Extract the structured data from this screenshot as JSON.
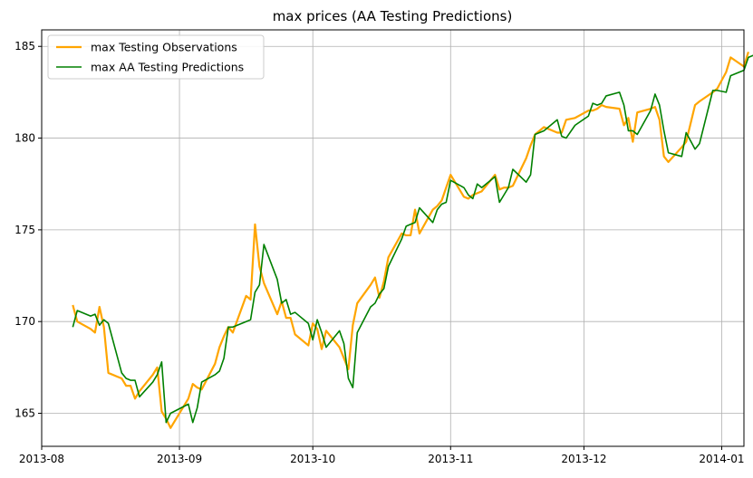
{
  "chart_data": {
    "type": "line",
    "title": "max prices (AA Testing Predictions)",
    "xlabel": "",
    "ylabel": "",
    "x_axis_type": "date",
    "xlim": [
      "2013-08-01",
      "2014-01-06"
    ],
    "ylim": [
      163.2,
      185.9
    ],
    "x_ticks": [
      "2013-08",
      "2013-09",
      "2013-10",
      "2013-11",
      "2013-12",
      "2014-01"
    ],
    "y_ticks": [
      165,
      170,
      175,
      180,
      185
    ],
    "grid": true,
    "legend_position": "upper-left",
    "series": [
      {
        "name": "max Testing Observations",
        "color": "#FFA500",
        "points": [
          [
            "2013-08-08",
            170.9
          ],
          [
            "2013-08-09",
            170.0
          ],
          [
            "2013-08-12",
            169.6
          ],
          [
            "2013-08-13",
            169.4
          ],
          [
            "2013-08-14",
            170.8
          ],
          [
            "2013-08-15",
            169.7
          ],
          [
            "2013-08-16",
            167.2
          ],
          [
            "2013-08-19",
            166.9
          ],
          [
            "2013-08-20",
            166.5
          ],
          [
            "2013-08-21",
            166.5
          ],
          [
            "2013-08-22",
            165.8
          ],
          [
            "2013-08-23",
            166.2
          ],
          [
            "2013-08-26",
            167.1
          ],
          [
            "2013-08-27",
            167.5
          ],
          [
            "2013-08-28",
            165.1
          ],
          [
            "2013-08-29",
            164.7
          ],
          [
            "2013-08-30",
            164.2
          ],
          [
            "2013-09-03",
            165.8
          ],
          [
            "2013-09-04",
            166.6
          ],
          [
            "2013-09-05",
            166.4
          ],
          [
            "2013-09-06",
            166.3
          ],
          [
            "2013-09-09",
            167.7
          ],
          [
            "2013-09-10",
            168.6
          ],
          [
            "2013-09-11",
            169.2
          ],
          [
            "2013-09-12",
            169.7
          ],
          [
            "2013-09-13",
            169.4
          ],
          [
            "2013-09-16",
            171.4
          ],
          [
            "2013-09-17",
            171.2
          ],
          [
            "2013-09-18",
            175.3
          ],
          [
            "2013-09-19",
            173.0
          ],
          [
            "2013-09-20",
            172.1
          ],
          [
            "2013-09-23",
            170.4
          ],
          [
            "2013-09-24",
            171.1
          ],
          [
            "2013-09-25",
            170.2
          ],
          [
            "2013-09-26",
            170.2
          ],
          [
            "2013-09-27",
            169.3
          ],
          [
            "2013-09-30",
            168.7
          ],
          [
            "2013-10-01",
            169.9
          ],
          [
            "2013-10-02",
            169.6
          ],
          [
            "2013-10-03",
            168.5
          ],
          [
            "2013-10-04",
            169.5
          ],
          [
            "2013-10-07",
            168.6
          ],
          [
            "2013-10-08",
            168.0
          ],
          [
            "2013-10-09",
            167.4
          ],
          [
            "2013-10-10",
            169.8
          ],
          [
            "2013-10-11",
            171.0
          ],
          [
            "2013-10-14",
            172.0
          ],
          [
            "2013-10-15",
            172.4
          ],
          [
            "2013-10-16",
            171.3
          ],
          [
            "2013-10-17",
            172.2
          ],
          [
            "2013-10-18",
            173.5
          ],
          [
            "2013-10-21",
            174.8
          ],
          [
            "2013-10-22",
            174.7
          ],
          [
            "2013-10-23",
            174.7
          ],
          [
            "2013-10-24",
            176.1
          ],
          [
            "2013-10-25",
            174.8
          ],
          [
            "2013-10-28",
            176.1
          ],
          [
            "2013-10-29",
            176.3
          ],
          [
            "2013-10-30",
            176.6
          ],
          [
            "2013-10-31",
            177.3
          ],
          [
            "2013-11-01",
            178.0
          ],
          [
            "2013-11-04",
            176.8
          ],
          [
            "2013-11-05",
            176.7
          ],
          [
            "2013-11-06",
            176.9
          ],
          [
            "2013-11-07",
            177.0
          ],
          [
            "2013-11-08",
            177.1
          ],
          [
            "2013-11-11",
            178.0
          ],
          [
            "2013-11-12",
            177.2
          ],
          [
            "2013-11-13",
            177.3
          ],
          [
            "2013-11-14",
            177.3
          ],
          [
            "2013-11-15",
            177.4
          ],
          [
            "2013-11-18",
            178.9
          ],
          [
            "2013-11-19",
            179.6
          ],
          [
            "2013-11-20",
            180.2
          ],
          [
            "2013-11-21",
            180.4
          ],
          [
            "2013-11-22",
            180.6
          ],
          [
            "2013-11-25",
            180.3
          ],
          [
            "2013-11-26",
            180.3
          ],
          [
            "2013-11-27",
            181.0
          ],
          [
            "2013-11-29",
            181.1
          ],
          [
            "2013-12-02",
            181.5
          ],
          [
            "2013-12-03",
            181.5
          ],
          [
            "2013-12-04",
            181.6
          ],
          [
            "2013-12-05",
            181.8
          ],
          [
            "2013-12-06",
            181.7
          ],
          [
            "2013-12-09",
            181.6
          ],
          [
            "2013-12-10",
            180.7
          ],
          [
            "2013-12-11",
            181.1
          ],
          [
            "2013-12-12",
            179.8
          ],
          [
            "2013-12-13",
            181.4
          ],
          [
            "2013-12-16",
            181.6
          ],
          [
            "2013-12-17",
            181.7
          ],
          [
            "2013-12-18",
            181.0
          ],
          [
            "2013-12-19",
            179.0
          ],
          [
            "2013-12-20",
            178.7
          ],
          [
            "2013-12-23",
            179.5
          ],
          [
            "2013-12-24",
            179.8
          ],
          [
            "2013-12-26",
            181.8
          ],
          [
            "2013-12-27",
            182.0
          ],
          [
            "2013-12-30",
            182.5
          ],
          [
            "2013-12-31",
            182.7
          ],
          [
            "2014-01-02",
            183.6
          ],
          [
            "2014-01-03",
            184.4
          ],
          [
            "2014-01-06",
            183.9
          ],
          [
            "2014-01-07",
            184.7
          ]
        ]
      },
      {
        "name": "max AA Testing Predictions",
        "color": "#008000",
        "points": [
          [
            "2013-08-08",
            169.7
          ],
          [
            "2013-08-09",
            170.6
          ],
          [
            "2013-08-12",
            170.3
          ],
          [
            "2013-08-13",
            170.4
          ],
          [
            "2013-08-14",
            169.8
          ],
          [
            "2013-08-15",
            170.1
          ],
          [
            "2013-08-16",
            169.9
          ],
          [
            "2013-08-19",
            167.2
          ],
          [
            "2013-08-20",
            166.9
          ],
          [
            "2013-08-21",
            166.8
          ],
          [
            "2013-08-22",
            166.8
          ],
          [
            "2013-08-23",
            165.9
          ],
          [
            "2013-08-26",
            166.7
          ],
          [
            "2013-08-27",
            167.1
          ],
          [
            "2013-08-28",
            167.8
          ],
          [
            "2013-08-29",
            164.5
          ],
          [
            "2013-08-30",
            165.0
          ],
          [
            "2013-09-03",
            165.5
          ],
          [
            "2013-09-04",
            164.5
          ],
          [
            "2013-09-05",
            165.3
          ],
          [
            "2013-09-06",
            166.7
          ],
          [
            "2013-09-09",
            167.1
          ],
          [
            "2013-09-10",
            167.3
          ],
          [
            "2013-09-11",
            168.0
          ],
          [
            "2013-09-12",
            169.7
          ],
          [
            "2013-09-13",
            169.7
          ],
          [
            "2013-09-16",
            170.0
          ],
          [
            "2013-09-17",
            170.1
          ],
          [
            "2013-09-18",
            171.6
          ],
          [
            "2013-09-19",
            172.0
          ],
          [
            "2013-09-20",
            174.2
          ],
          [
            "2013-09-23",
            172.3
          ],
          [
            "2013-09-24",
            171.0
          ],
          [
            "2013-09-25",
            171.2
          ],
          [
            "2013-09-26",
            170.4
          ],
          [
            "2013-09-27",
            170.5
          ],
          [
            "2013-09-30",
            169.9
          ],
          [
            "2013-10-01",
            169.0
          ],
          [
            "2013-10-02",
            170.1
          ],
          [
            "2013-10-03",
            169.4
          ],
          [
            "2013-10-04",
            168.6
          ],
          [
            "2013-10-07",
            169.5
          ],
          [
            "2013-10-08",
            168.8
          ],
          [
            "2013-10-09",
            166.9
          ],
          [
            "2013-10-10",
            166.4
          ],
          [
            "2013-10-11",
            169.4
          ],
          [
            "2013-10-14",
            170.8
          ],
          [
            "2013-10-15",
            171.0
          ],
          [
            "2013-10-16",
            171.5
          ],
          [
            "2013-10-17",
            171.8
          ],
          [
            "2013-10-18",
            173.0
          ],
          [
            "2013-10-21",
            174.5
          ],
          [
            "2013-10-22",
            175.2
          ],
          [
            "2013-10-23",
            175.3
          ],
          [
            "2013-10-24",
            175.4
          ],
          [
            "2013-10-25",
            176.2
          ],
          [
            "2013-10-28",
            175.4
          ],
          [
            "2013-10-29",
            176.1
          ],
          [
            "2013-10-30",
            176.4
          ],
          [
            "2013-10-31",
            176.5
          ],
          [
            "2013-11-01",
            177.7
          ],
          [
            "2013-11-04",
            177.3
          ],
          [
            "2013-11-05",
            176.9
          ],
          [
            "2013-11-06",
            176.7
          ],
          [
            "2013-11-07",
            177.5
          ],
          [
            "2013-11-08",
            177.3
          ],
          [
            "2013-11-11",
            177.9
          ],
          [
            "2013-11-12",
            176.5
          ],
          [
            "2013-11-13",
            176.9
          ],
          [
            "2013-11-14",
            177.3
          ],
          [
            "2013-11-15",
            178.3
          ],
          [
            "2013-11-18",
            177.6
          ],
          [
            "2013-11-19",
            178.0
          ],
          [
            "2013-11-20",
            180.2
          ],
          [
            "2013-11-21",
            180.3
          ],
          [
            "2013-11-22",
            180.4
          ],
          [
            "2013-11-25",
            181.0
          ],
          [
            "2013-11-26",
            180.1
          ],
          [
            "2013-11-27",
            180.0
          ],
          [
            "2013-11-29",
            180.7
          ],
          [
            "2013-12-02",
            181.2
          ],
          [
            "2013-12-03",
            181.9
          ],
          [
            "2013-12-04",
            181.8
          ],
          [
            "2013-12-05",
            181.9
          ],
          [
            "2013-12-06",
            182.3
          ],
          [
            "2013-12-09",
            182.5
          ],
          [
            "2013-12-10",
            181.8
          ],
          [
            "2013-12-11",
            180.4
          ],
          [
            "2013-12-12",
            180.4
          ],
          [
            "2013-12-13",
            180.2
          ],
          [
            "2013-12-16",
            181.5
          ],
          [
            "2013-12-17",
            182.4
          ],
          [
            "2013-12-18",
            181.8
          ],
          [
            "2013-12-19",
            180.4
          ],
          [
            "2013-12-20",
            179.2
          ],
          [
            "2013-12-23",
            179.0
          ],
          [
            "2013-12-24",
            180.3
          ],
          [
            "2013-12-26",
            179.4
          ],
          [
            "2013-12-27",
            179.7
          ],
          [
            "2013-12-30",
            182.6
          ],
          [
            "2013-12-31",
            182.6
          ],
          [
            "2014-01-02",
            182.5
          ],
          [
            "2014-01-03",
            183.4
          ],
          [
            "2014-01-06",
            183.7
          ],
          [
            "2014-01-07",
            184.4
          ],
          [
            "2014-01-08",
            184.5
          ],
          [
            "2014-01-09",
            184.6
          ],
          [
            "2014-01-10",
            184.5
          ]
        ]
      }
    ]
  }
}
